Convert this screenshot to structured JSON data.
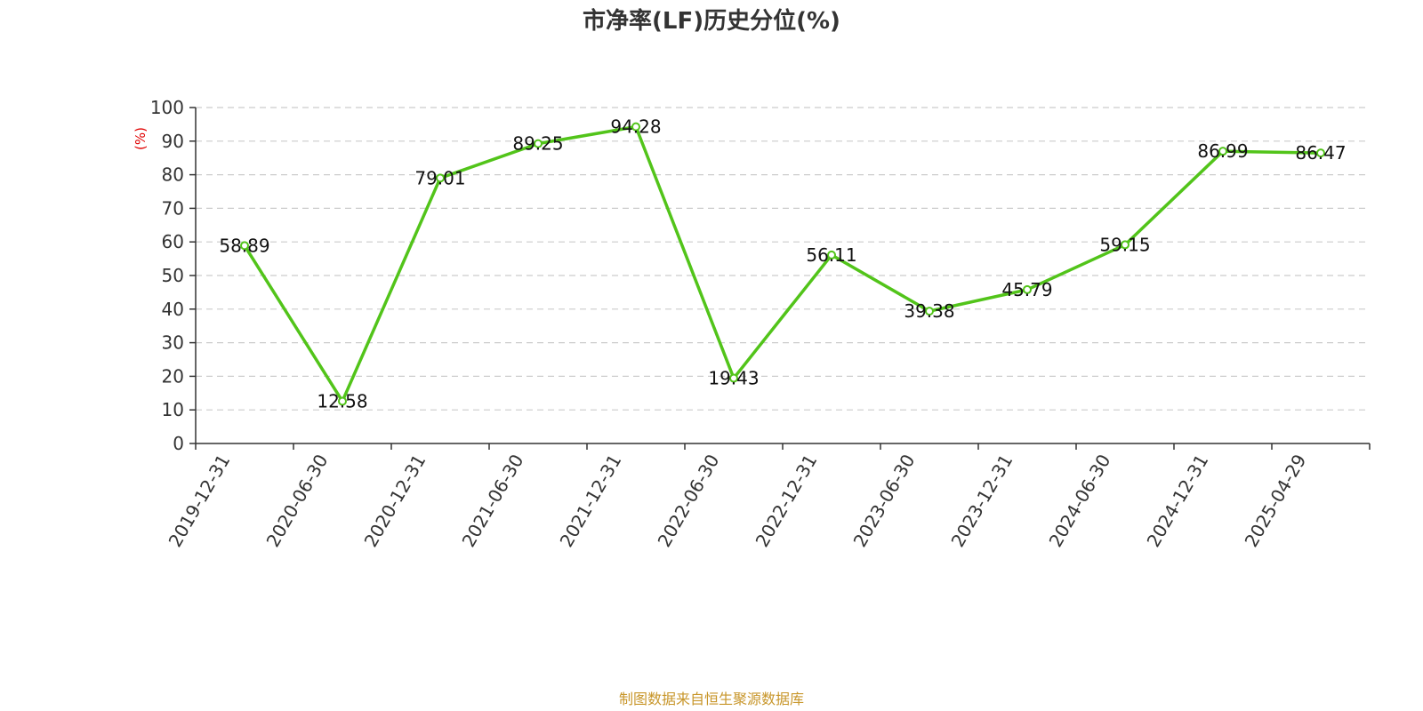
{
  "chart_data": {
    "type": "line",
    "title": "市净率(LF)历史分位(%)",
    "ylabel": "(%)",
    "xlabel": "",
    "categories": [
      "2019-12-31",
      "2020-06-30",
      "2020-12-31",
      "2021-06-30",
      "2021-12-31",
      "2022-06-30",
      "2022-12-31",
      "2023-06-30",
      "2023-12-31",
      "2024-06-30",
      "2024-12-31",
      "2025-04-29"
    ],
    "series": [
      {
        "values": [
          58.89,
          12.58,
          79.01,
          89.25,
          94.28,
          19.43,
          56.11,
          39.38,
          45.79,
          59.15,
          86.99,
          86.47
        ]
      }
    ],
    "data_labels": [
      "58.89",
      "12.58",
      "79.01",
      "89.25",
      "94.28",
      "19.43",
      "56.11",
      "39.38",
      "45.79",
      "59.15",
      "86.99",
      "86.47"
    ],
    "ylim": [
      0,
      100
    ],
    "yticks": [
      "0",
      "10",
      "20",
      "30",
      "40",
      "50",
      "60",
      "70",
      "80",
      "90",
      "100"
    ],
    "grid": true,
    "legend": "none",
    "colors": {
      "line": "#52c41a",
      "axis": "#333333",
      "grid": "#cccccc",
      "unit": "#e00000",
      "source": "#c8962a"
    }
  },
  "footer": {
    "source": "制图数据来自恒生聚源数据库"
  }
}
